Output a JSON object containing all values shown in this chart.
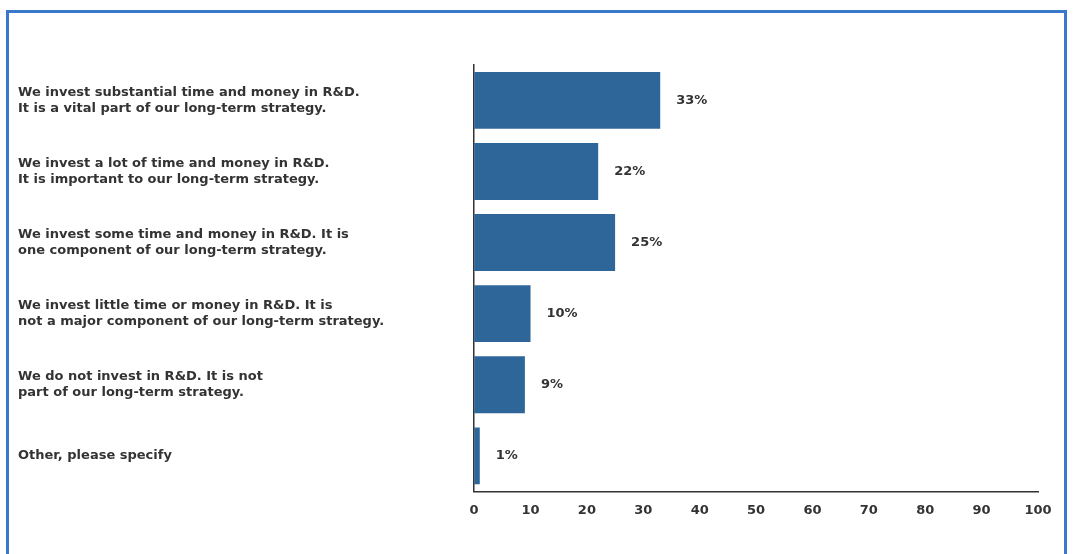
{
  "chart_data": {
    "type": "bar",
    "orientation": "horizontal",
    "categories": [
      "We invest substantial time and money in R&D.\nIt is a vital part of our long-term strategy.",
      "We invest a lot of time and money in R&D.\nIt is important to our long-term strategy.",
      "We invest some time and money in R&D. It is\none component of our long-term strategy.",
      "We invest little time or money in R&D. It is\nnot a major component of our long-term strategy.",
      "We do not invest in R&D. It is not\npart of our long-term strategy.",
      "Other, please specify"
    ],
    "values": [
      33,
      22,
      25,
      10,
      9,
      1
    ],
    "value_labels": [
      "33%",
      "22%",
      "25%",
      "10%",
      "9%",
      "1%"
    ],
    "color": "#2e6699",
    "xlim": [
      0,
      100
    ],
    "xticks": [
      0,
      10,
      20,
      30,
      40,
      50,
      60,
      70,
      80,
      90,
      100
    ],
    "grid": false,
    "legend": false
  }
}
